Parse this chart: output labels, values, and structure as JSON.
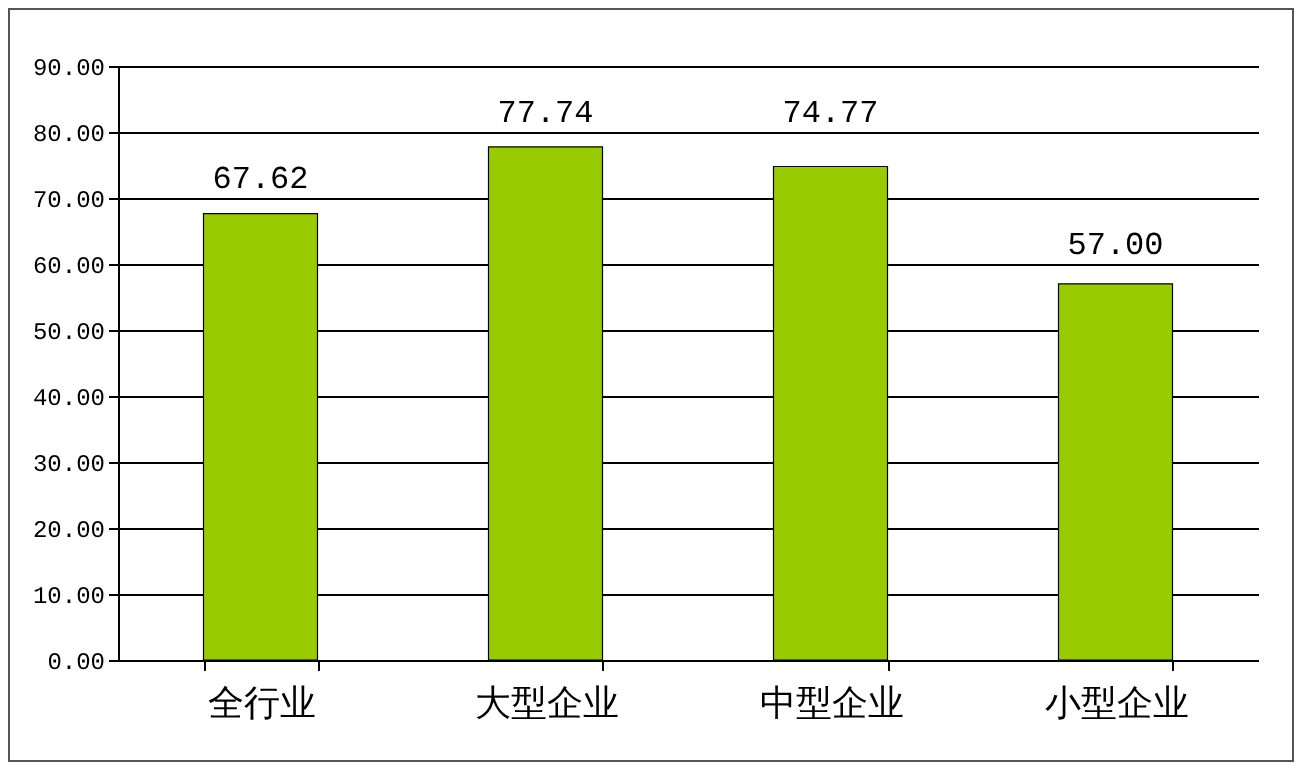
{
  "chart_data": {
    "type": "bar",
    "categories": [
      "全行业",
      "大型企业",
      "中型企业",
      "小型企业"
    ],
    "values": [
      67.62,
      77.74,
      74.77,
      57.0
    ],
    "value_labels": [
      "67.62",
      "77.74",
      "74.77",
      "57.00"
    ],
    "color": "#99cc00",
    "ylim": [
      0,
      90
    ],
    "yticks": [
      {
        "value": 0,
        "label": "0.00"
      },
      {
        "value": 10,
        "label": "10.00"
      },
      {
        "value": 20,
        "label": "20.00"
      },
      {
        "value": 30,
        "label": "30.00"
      },
      {
        "value": 40,
        "label": "40.00"
      },
      {
        "value": 50,
        "label": "50.00"
      },
      {
        "value": 60,
        "label": "60.00"
      },
      {
        "value": 70,
        "label": "70.00"
      },
      {
        "value": 80,
        "label": "80.00"
      },
      {
        "value": 90,
        "label": "90.00"
      }
    ],
    "grid": "y"
  }
}
